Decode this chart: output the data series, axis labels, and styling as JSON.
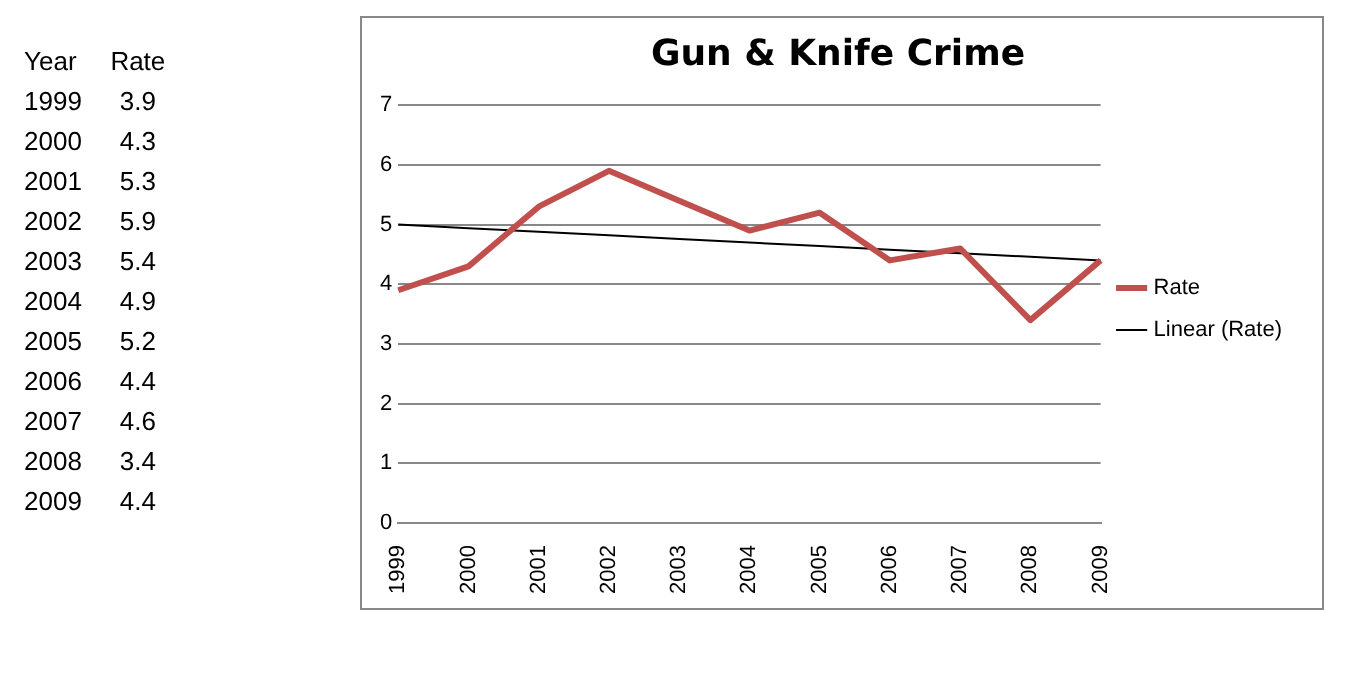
{
  "chart_data": [
    {
      "type": "heatmap",
      "ylabel": "Year",
      "categories": [
        "Rate"
      ],
      "y_categories": [
        "1999",
        "2000",
        "2001",
        "2002",
        "2003",
        "2004",
        "2005",
        "2006",
        "2007",
        "2008",
        "2009"
      ],
      "cells": [
        [
          3.9
        ],
        [
          4.3
        ],
        [
          5.3
        ],
        [
          5.9
        ],
        [
          5.4
        ],
        [
          4.9
        ],
        [
          5.2
        ],
        [
          4.4
        ],
        [
          4.6
        ],
        [
          3.4
        ],
        [
          4.4
        ]
      ],
      "data_labels": true
    },
    {
      "type": "line",
      "title": "Gun & Knife Crime",
      "categories": [
        "1999",
        "2000",
        "2001",
        "2002",
        "2003",
        "2004",
        "2005",
        "2006",
        "2007",
        "2008",
        "2009"
      ],
      "series": [
        {
          "name": "Rate",
          "color": "#c0504d",
          "values": [
            3.9,
            4.3,
            5.3,
            5.9,
            5.4,
            4.9,
            5.2,
            4.4,
            4.6,
            3.4,
            4.4
          ]
        },
        {
          "name": "Linear (Rate)",
          "type": "line",
          "color": "#000000",
          "values": [
            5.0,
            4.94,
            4.88,
            4.82,
            4.76,
            4.7,
            4.64,
            4.58,
            4.52,
            4.46,
            4.4
          ]
        }
      ],
      "ylim": [
        0,
        7
      ],
      "yticks": [
        0,
        1,
        2,
        3,
        4,
        5,
        6,
        7
      ],
      "grid": "y",
      "legend": "right",
      "marker": "none",
      "line_style": "solid"
    }
  ]
}
